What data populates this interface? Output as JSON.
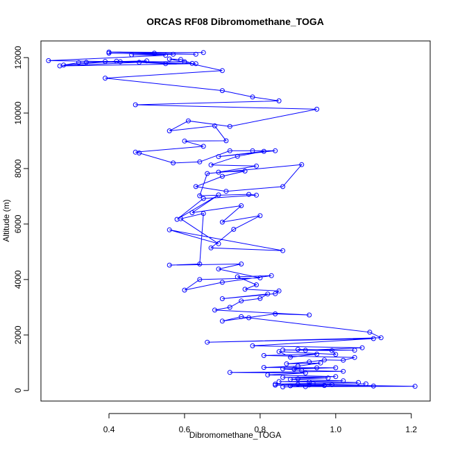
{
  "chart_data": {
    "type": "line",
    "title": "ORCAS RF08 Dibromomethane_TOGA",
    "xlabel": "Dibromomethane_TOGA",
    "ylabel": "Altitude (m)",
    "xlim": [
      0.22,
      1.25
    ],
    "ylim": [
      -380,
      12600
    ],
    "xticks": [
      0.4,
      0.6,
      0.8,
      1.0,
      1.2
    ],
    "xtick_labels": [
      "0.4",
      "0.6",
      "0.8",
      "1.0",
      "1.2"
    ],
    "yticks": [
      0,
      2000,
      4000,
      6000,
      8000,
      10000,
      12000
    ],
    "ytick_labels": [
      "0",
      "2000",
      "4000",
      "6000",
      "8000",
      "10000",
      "12000"
    ],
    "grid": false,
    "markers": "open-circle",
    "colors": {
      "series": "#0000ff",
      "axis": "#000000",
      "background": "#ffffff"
    },
    "series": [
      {
        "x": [
          0.65,
          0.4,
          0.52,
          0.63,
          0.4,
          0.57,
          0.46,
          0.55,
          0.24,
          0.43,
          0.63,
          0.27,
          0.48,
          0.39,
          0.6,
          0.34,
          0.5,
          0.32,
          0.28,
          0.42,
          0.55,
          0.62,
          0.59,
          0.56,
          0.7,
          0.39,
          0.7,
          0.78,
          0.85,
          0.47,
          0.95,
          0.72,
          0.61,
          0.56,
          0.68,
          0.71,
          0.6,
          0.65,
          0.47,
          0.48,
          0.57,
          0.64,
          0.72,
          0.78,
          0.84,
          0.69,
          0.81,
          0.74,
          0.67,
          0.79,
          0.69,
          0.76,
          0.7,
          0.63,
          0.71,
          0.86,
          0.91,
          0.66,
          0.64,
          0.77,
          0.79,
          0.65,
          0.58,
          0.69,
          0.62,
          0.75,
          0.7,
          0.8,
          0.73,
          0.67,
          0.86,
          0.56,
          0.69,
          0.59,
          0.65,
          0.64,
          0.56,
          0.75,
          0.69,
          0.8,
          0.64,
          0.6,
          0.7,
          0.83,
          0.74,
          0.79,
          0.76,
          0.85,
          0.84,
          0.7,
          0.82,
          0.8,
          0.75,
          0.72,
          0.68,
          0.93,
          0.84,
          0.7,
          0.75,
          0.77,
          1.09,
          1.12,
          0.66,
          1.1,
          0.78,
          1.07,
          0.92,
          0.9,
          1.05,
          0.86,
          0.99,
          1.0,
          0.85,
          0.88,
          0.95,
          0.81,
          1.05,
          1.02,
          0.97,
          0.93,
          0.87,
          0.96,
          0.9,
          0.81,
          1.0,
          0.89,
          0.95,
          0.86,
          0.91,
          1.02,
          0.72,
          0.92,
          0.82,
          1.0,
          0.86,
          0.98,
          0.9,
          0.88,
          1.02,
          0.85,
          0.93,
          1.06,
          0.94,
          0.84,
          1.21,
          0.92,
          0.86,
          1.1,
          0.88,
          0.97,
          0.84,
          0.93,
          0.99,
          0.9,
          1.08
        ],
        "y": [
          12180,
          12200,
          12160,
          12120,
          12160,
          12120,
          12100,
          12080,
          11890,
          11850,
          11780,
          11700,
          11830,
          11860,
          11850,
          11830,
          11880,
          11820,
          11730,
          11870,
          11780,
          11790,
          11930,
          11950,
          11530,
          11260,
          10810,
          10580,
          10440,
          10300,
          10140,
          9520,
          9720,
          9360,
          9540,
          9000,
          8990,
          8800,
          8590,
          8560,
          8200,
          8240,
          8640,
          8640,
          8640,
          8430,
          8620,
          8440,
          8130,
          8090,
          7870,
          7910,
          7720,
          7350,
          7180,
          7350,
          8140,
          7820,
          7020,
          7070,
          7040,
          6920,
          6170,
          7050,
          6410,
          6660,
          6070,
          6300,
          5810,
          5140,
          5040,
          5790,
          5290,
          6190,
          6380,
          4560,
          4520,
          4560,
          4380,
          4060,
          4000,
          3620,
          3900,
          4140,
          4100,
          3810,
          3650,
          3590,
          3490,
          3310,
          3480,
          3320,
          3230,
          3000,
          2900,
          2720,
          2760,
          2500,
          2660,
          2620,
          2100,
          1900,
          1740,
          1870,
          1610,
          1540,
          1450,
          1480,
          1450,
          1460,
          1440,
          1300,
          1400,
          1200,
          1310,
          1260,
          1190,
          1090,
          1100,
          1030,
          960,
          990,
          880,
          830,
          820,
          770,
          820,
          780,
          720,
          690,
          650,
          630,
          560,
          500,
          470,
          450,
          420,
          400,
          350,
          320,
          310,
          290,
          260,
          230,
          150,
          140,
          130,
          160,
          170,
          180,
          190,
          200,
          210,
          220,
          240
        ]
      }
    ]
  }
}
